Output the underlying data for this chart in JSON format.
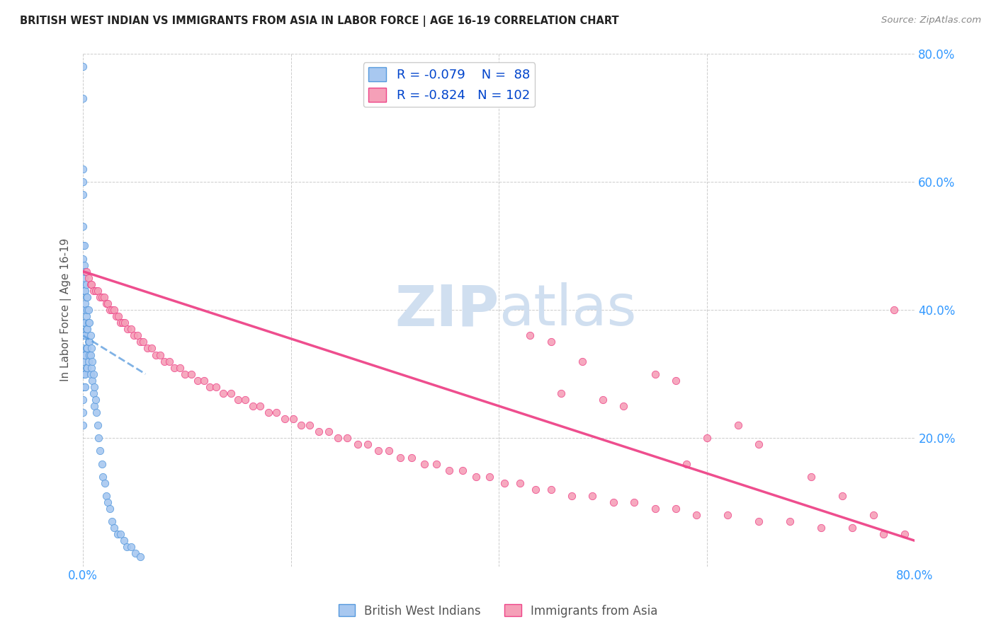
{
  "title": "BRITISH WEST INDIAN VS IMMIGRANTS FROM ASIA IN LABOR FORCE | AGE 16-19 CORRELATION CHART",
  "source": "Source: ZipAtlas.com",
  "ylabel": "In Labor Force | Age 16-19",
  "xmin": 0.0,
  "xmax": 0.8,
  "ymin": 0.0,
  "ymax": 0.8,
  "blue_R": -0.079,
  "blue_N": 88,
  "pink_R": -0.824,
  "pink_N": 102,
  "blue_color": "#a8c8f0",
  "pink_color": "#f5a0b8",
  "blue_line_color": "#5599dd",
  "pink_line_color": "#ee4488",
  "watermark_color": "#d0dff0",
  "grid_color": "#cccccc",
  "title_color": "#222222",
  "axis_label_color": "#3399ff",
  "blue_scatter_x": [
    0.0,
    0.0,
    0.0,
    0.0,
    0.0,
    0.0,
    0.0,
    0.0,
    0.0,
    0.0,
    0.0,
    0.0,
    0.0,
    0.0,
    0.0,
    0.0,
    0.0,
    0.0,
    0.0,
    0.0,
    0.0,
    0.001,
    0.001,
    0.001,
    0.001,
    0.001,
    0.001,
    0.001,
    0.001,
    0.001,
    0.001,
    0.002,
    0.002,
    0.002,
    0.002,
    0.002,
    0.002,
    0.002,
    0.002,
    0.003,
    0.003,
    0.003,
    0.003,
    0.003,
    0.003,
    0.004,
    0.004,
    0.004,
    0.004,
    0.004,
    0.005,
    0.005,
    0.005,
    0.005,
    0.006,
    0.006,
    0.006,
    0.007,
    0.007,
    0.007,
    0.008,
    0.008,
    0.009,
    0.009,
    0.01,
    0.01,
    0.011,
    0.011,
    0.012,
    0.013,
    0.014,
    0.015,
    0.016,
    0.018,
    0.019,
    0.021,
    0.022,
    0.024,
    0.026,
    0.028,
    0.03,
    0.033,
    0.036,
    0.039,
    0.042,
    0.046,
    0.05,
    0.055
  ],
  "blue_scatter_y": [
    0.78,
    0.73,
    0.62,
    0.6,
    0.58,
    0.53,
    0.5,
    0.48,
    0.46,
    0.44,
    0.43,
    0.4,
    0.38,
    0.36,
    0.34,
    0.32,
    0.3,
    0.28,
    0.26,
    0.24,
    0.22,
    0.5,
    0.47,
    0.45,
    0.43,
    0.4,
    0.38,
    0.36,
    0.33,
    0.3,
    0.28,
    0.46,
    0.43,
    0.41,
    0.38,
    0.36,
    0.33,
    0.3,
    0.28,
    0.44,
    0.42,
    0.39,
    0.37,
    0.34,
    0.31,
    0.42,
    0.4,
    0.37,
    0.34,
    0.31,
    0.4,
    0.38,
    0.35,
    0.32,
    0.38,
    0.35,
    0.33,
    0.36,
    0.33,
    0.3,
    0.34,
    0.31,
    0.32,
    0.29,
    0.3,
    0.27,
    0.28,
    0.25,
    0.26,
    0.24,
    0.22,
    0.2,
    0.18,
    0.16,
    0.14,
    0.13,
    0.11,
    0.1,
    0.09,
    0.07,
    0.06,
    0.05,
    0.05,
    0.04,
    0.03,
    0.03,
    0.02,
    0.015
  ],
  "pink_scatter_x": [
    0.003,
    0.005,
    0.007,
    0.008,
    0.01,
    0.012,
    0.014,
    0.016,
    0.018,
    0.02,
    0.022,
    0.024,
    0.026,
    0.028,
    0.03,
    0.032,
    0.034,
    0.036,
    0.038,
    0.04,
    0.043,
    0.046,
    0.049,
    0.052,
    0.055,
    0.058,
    0.062,
    0.066,
    0.07,
    0.074,
    0.078,
    0.083,
    0.088,
    0.093,
    0.098,
    0.104,
    0.11,
    0.116,
    0.122,
    0.128,
    0.135,
    0.142,
    0.149,
    0.156,
    0.163,
    0.17,
    0.178,
    0.186,
    0.194,
    0.202,
    0.21,
    0.218,
    0.227,
    0.236,
    0.245,
    0.254,
    0.264,
    0.274,
    0.284,
    0.294,
    0.305,
    0.316,
    0.328,
    0.34,
    0.352,
    0.365,
    0.378,
    0.391,
    0.405,
    0.42,
    0.435,
    0.45,
    0.47,
    0.49,
    0.51,
    0.53,
    0.55,
    0.57,
    0.59,
    0.62,
    0.65,
    0.68,
    0.71,
    0.74,
    0.77,
    0.55,
    0.57,
    0.45,
    0.5,
    0.52,
    0.48,
    0.43,
    0.46,
    0.6,
    0.63,
    0.58,
    0.65,
    0.7,
    0.73,
    0.76,
    0.79,
    0.78
  ],
  "pink_scatter_y": [
    0.46,
    0.45,
    0.44,
    0.44,
    0.43,
    0.43,
    0.43,
    0.42,
    0.42,
    0.42,
    0.41,
    0.41,
    0.4,
    0.4,
    0.4,
    0.39,
    0.39,
    0.38,
    0.38,
    0.38,
    0.37,
    0.37,
    0.36,
    0.36,
    0.35,
    0.35,
    0.34,
    0.34,
    0.33,
    0.33,
    0.32,
    0.32,
    0.31,
    0.31,
    0.3,
    0.3,
    0.29,
    0.29,
    0.28,
    0.28,
    0.27,
    0.27,
    0.26,
    0.26,
    0.25,
    0.25,
    0.24,
    0.24,
    0.23,
    0.23,
    0.22,
    0.22,
    0.21,
    0.21,
    0.2,
    0.2,
    0.19,
    0.19,
    0.18,
    0.18,
    0.17,
    0.17,
    0.16,
    0.16,
    0.15,
    0.15,
    0.14,
    0.14,
    0.13,
    0.13,
    0.12,
    0.12,
    0.11,
    0.11,
    0.1,
    0.1,
    0.09,
    0.09,
    0.08,
    0.08,
    0.07,
    0.07,
    0.06,
    0.06,
    0.05,
    0.3,
    0.29,
    0.35,
    0.26,
    0.25,
    0.32,
    0.36,
    0.27,
    0.2,
    0.22,
    0.16,
    0.19,
    0.14,
    0.11,
    0.08,
    0.05,
    0.4
  ],
  "blue_trendline_x": [
    0.0,
    0.06
  ],
  "blue_trendline_y": [
    0.36,
    0.3
  ],
  "pink_trendline_x": [
    0.0,
    0.8
  ],
  "pink_trendline_y": [
    0.46,
    0.04
  ]
}
